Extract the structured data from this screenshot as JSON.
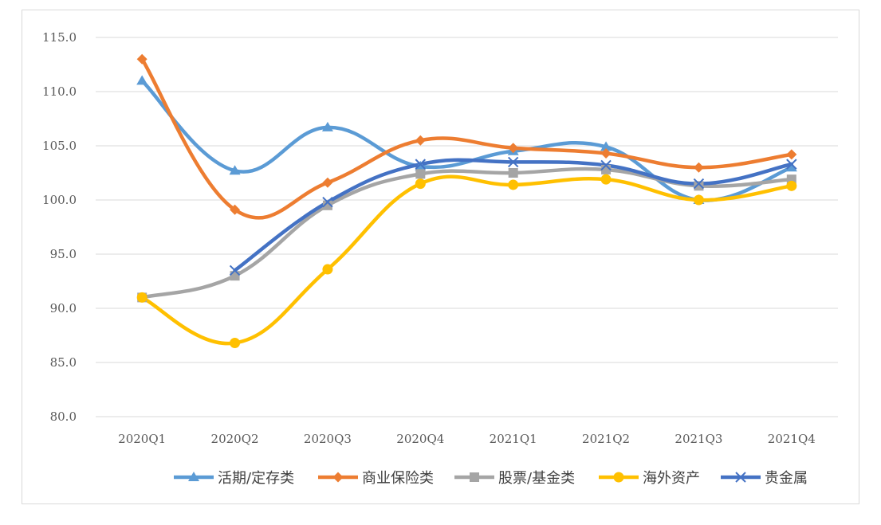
{
  "chart_data": {
    "type": "line",
    "title": "",
    "xlabel": "",
    "ylabel": "",
    "categories": [
      "2020Q1",
      "2020Q2",
      "2020Q3",
      "2020Q4",
      "2021Q1",
      "2021Q2",
      "2021Q3",
      "2021Q4"
    ],
    "ylim": [
      80,
      115
    ],
    "yticks": [
      80,
      85,
      90,
      95,
      100,
      105,
      110,
      115
    ],
    "ytick_labels": [
      "80.0",
      "85.0",
      "90.0",
      "95.0",
      "100.0",
      "105.0",
      "110.0",
      "115.0"
    ],
    "grid": true,
    "smooth": true,
    "legend_position": "bottom",
    "series": [
      {
        "name": "活期/定存类",
        "color": "#5b9bd5",
        "marker": "triangle",
        "values": [
          111.0,
          102.7,
          106.7,
          103.1,
          104.5,
          104.9,
          100.0,
          103.0
        ]
      },
      {
        "name": "商业保险类",
        "color": "#ed7d31",
        "marker": "diamond",
        "values": [
          113.0,
          99.1,
          101.6,
          105.5,
          104.8,
          104.3,
          103.0,
          104.2
        ]
      },
      {
        "name": "股票/基金类",
        "color": "#a5a5a5",
        "marker": "square",
        "values": [
          91.0,
          93.0,
          99.5,
          102.4,
          102.5,
          102.8,
          101.3,
          101.9
        ]
      },
      {
        "name": "海外资产",
        "color": "#ffc000",
        "marker": "circle",
        "values": [
          91.0,
          86.8,
          93.6,
          101.5,
          101.4,
          101.9,
          100.0,
          101.3
        ]
      },
      {
        "name": "贵金属",
        "color": "#4472c4",
        "marker": "x",
        "values": [
          null,
          93.5,
          99.8,
          103.3,
          103.5,
          103.2,
          101.5,
          103.3
        ]
      }
    ]
  }
}
